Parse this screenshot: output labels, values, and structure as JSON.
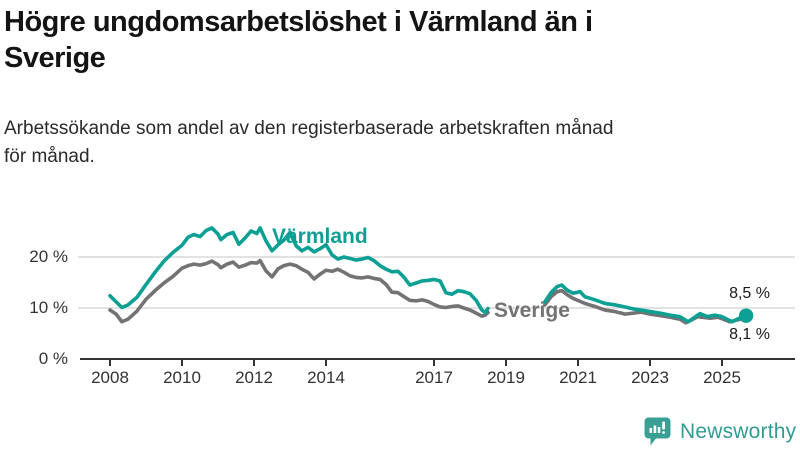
{
  "header": {
    "title": "Högre ungdomsarbetslöshet i Värmland än i\nSverige",
    "subtitle": "Arbetssökande som andel av den registerbaserade arbetskraften månad\nför månad."
  },
  "logo": {
    "text": "Newsworthy",
    "color": "#2f9c92",
    "icon": "newsworthy-speech-bubble-bar-chart-icon"
  },
  "colors": {
    "varmland_teal": "#0c9f94",
    "sverige_gray": "#737376",
    "axis": "#333333",
    "gridline": "#d9d9d9",
    "title_text": "#141414"
  },
  "chart_data": {
    "type": "line",
    "title": "Högre ungdomsarbetslöshet i Värmland än i Sverige",
    "subtitle": "Arbetssökande som andel av den registerbaserade arbetskraften månad för månad.",
    "unit": "%",
    "grid": true,
    "legend_position": "inline-labels",
    "x_range": [
      2008,
      2026
    ],
    "ylim": [
      0,
      28
    ],
    "y_ticks": [
      {
        "value": 0,
        "label": "0 %"
      },
      {
        "value": 10,
        "label": "10 %"
      },
      {
        "value": 20,
        "label": "20 %"
      }
    ],
    "x_ticks": [
      {
        "label": "2008",
        "year": 2008
      },
      {
        "label": "2010",
        "year": 2010
      },
      {
        "label": "2012",
        "year": 2012
      },
      {
        "label": "2014",
        "year": 2014
      },
      {
        "label": "2017",
        "year": 2017
      },
      {
        "label": "2019",
        "year": 2019
      },
      {
        "label": "2021",
        "year": 2021
      },
      {
        "label": "2023",
        "year": 2023
      },
      {
        "label": "2025",
        "year": 2025
      }
    ],
    "series": [
      {
        "name": "Värmland",
        "color": "#0c9f94",
        "end_label": "8,5 %",
        "end_value": 8.5,
        "segments": [
          [
            [
              2008.0,
              12.4
            ],
            [
              2008.17,
              11.2
            ],
            [
              2008.33,
              10.1
            ],
            [
              2008.5,
              10.6
            ],
            [
              2008.75,
              12.1
            ],
            [
              2009.0,
              14.6
            ],
            [
              2009.25,
              17.0
            ],
            [
              2009.5,
              19.2
            ],
            [
              2009.75,
              20.9
            ],
            [
              2010.0,
              22.3
            ],
            [
              2010.17,
              23.9
            ],
            [
              2010.33,
              24.4
            ],
            [
              2010.5,
              24.0
            ],
            [
              2010.67,
              25.2
            ],
            [
              2010.83,
              25.7
            ],
            [
              2011.0,
              24.5
            ],
            [
              2011.08,
              23.4
            ],
            [
              2011.25,
              24.4
            ],
            [
              2011.42,
              24.8
            ],
            [
              2011.58,
              22.5
            ],
            [
              2011.75,
              23.7
            ],
            [
              2011.92,
              25.1
            ],
            [
              2012.08,
              24.6
            ],
            [
              2012.17,
              25.7
            ],
            [
              2012.33,
              23.2
            ],
            [
              2012.5,
              21.2
            ],
            [
              2012.67,
              22.4
            ],
            [
              2012.83,
              23.3
            ],
            [
              2013.0,
              24.8
            ],
            [
              2013.17,
              22.2
            ],
            [
              2013.33,
              21.2
            ],
            [
              2013.5,
              21.9
            ],
            [
              2013.67,
              21.0
            ],
            [
              2013.83,
              21.6
            ],
            [
              2014.0,
              22.4
            ],
            [
              2014.17,
              20.4
            ],
            [
              2014.33,
              19.6
            ],
            [
              2014.5,
              20.0
            ],
            [
              2014.67,
              19.7
            ],
            [
              2014.83,
              19.4
            ],
            [
              2015.0,
              19.6
            ],
            [
              2015.17,
              19.9
            ],
            [
              2015.33,
              19.3
            ],
            [
              2015.5,
              18.3
            ],
            [
              2015.67,
              17.6
            ],
            [
              2015.83,
              17.1
            ],
            [
              2016.0,
              17.2
            ],
            [
              2016.17,
              16.0
            ],
            [
              2016.33,
              14.5
            ],
            [
              2016.5,
              14.9
            ],
            [
              2016.67,
              15.3
            ],
            [
              2016.83,
              15.4
            ],
            [
              2017.0,
              15.6
            ],
            [
              2017.17,
              15.3
            ],
            [
              2017.33,
              13.0
            ],
            [
              2017.5,
              12.7
            ],
            [
              2017.67,
              13.4
            ],
            [
              2017.83,
              13.2
            ],
            [
              2018.0,
              12.8
            ],
            [
              2018.17,
              11.5
            ],
            [
              2018.33,
              9.6
            ],
            [
              2018.42,
              9.1
            ],
            [
              2018.5,
              9.9
            ]
          ],
          [
            [
              2020.08,
              11.2
            ],
            [
              2020.25,
              13.0
            ],
            [
              2020.42,
              14.2
            ],
            [
              2020.55,
              14.5
            ],
            [
              2020.7,
              13.5
            ],
            [
              2020.86,
              12.9
            ],
            [
              2021.06,
              13.2
            ],
            [
              2021.19,
              12.2
            ],
            [
              2021.47,
              11.6
            ],
            [
              2021.75,
              10.9
            ],
            [
              2022.03,
              10.6
            ],
            [
              2022.31,
              10.2
            ],
            [
              2022.55,
              9.8
            ],
            [
              2022.75,
              9.6
            ],
            [
              2023.0,
              9.3
            ],
            [
              2023.28,
              9.0
            ],
            [
              2023.56,
              8.6
            ],
            [
              2023.83,
              8.3
            ],
            [
              2024.06,
              7.3
            ],
            [
              2024.39,
              8.9
            ],
            [
              2024.6,
              8.3
            ],
            [
              2024.8,
              8.6
            ],
            [
              2025.0,
              8.3
            ],
            [
              2025.28,
              7.3
            ],
            [
              2025.45,
              7.9
            ],
            [
              2025.67,
              8.5
            ]
          ]
        ]
      },
      {
        "name": "Sverige",
        "color": "#737376",
        "end_label": "8,1 %",
        "end_value": 8.1,
        "segments": [
          [
            [
              2008.0,
              9.6
            ],
            [
              2008.17,
              8.8
            ],
            [
              2008.33,
              7.3
            ],
            [
              2008.5,
              7.8
            ],
            [
              2008.75,
              9.4
            ],
            [
              2009.0,
              11.7
            ],
            [
              2009.25,
              13.4
            ],
            [
              2009.5,
              14.9
            ],
            [
              2009.75,
              16.2
            ],
            [
              2010.0,
              17.8
            ],
            [
              2010.17,
              18.3
            ],
            [
              2010.33,
              18.6
            ],
            [
              2010.5,
              18.4
            ],
            [
              2010.67,
              18.7
            ],
            [
              2010.83,
              19.2
            ],
            [
              2011.0,
              18.5
            ],
            [
              2011.08,
              17.9
            ],
            [
              2011.25,
              18.6
            ],
            [
              2011.42,
              19.0
            ],
            [
              2011.58,
              18.0
            ],
            [
              2011.75,
              18.4
            ],
            [
              2011.92,
              18.9
            ],
            [
              2012.08,
              18.8
            ],
            [
              2012.17,
              19.3
            ],
            [
              2012.33,
              17.3
            ],
            [
              2012.5,
              16.1
            ],
            [
              2012.67,
              17.7
            ],
            [
              2012.83,
              18.3
            ],
            [
              2013.0,
              18.6
            ],
            [
              2013.17,
              18.3
            ],
            [
              2013.33,
              17.6
            ],
            [
              2013.5,
              17.0
            ],
            [
              2013.67,
              15.7
            ],
            [
              2013.83,
              16.6
            ],
            [
              2014.0,
              17.4
            ],
            [
              2014.17,
              17.2
            ],
            [
              2014.33,
              17.6
            ],
            [
              2014.5,
              17.0
            ],
            [
              2014.67,
              16.3
            ],
            [
              2014.83,
              16.0
            ],
            [
              2015.0,
              15.9
            ],
            [
              2015.17,
              16.1
            ],
            [
              2015.33,
              15.8
            ],
            [
              2015.5,
              15.6
            ],
            [
              2015.67,
              14.6
            ],
            [
              2015.83,
              13.1
            ],
            [
              2016.0,
              13.0
            ],
            [
              2016.17,
              12.2
            ],
            [
              2016.33,
              11.5
            ],
            [
              2016.5,
              11.4
            ],
            [
              2016.67,
              11.6
            ],
            [
              2016.83,
              11.3
            ],
            [
              2017.0,
              10.7
            ],
            [
              2017.17,
              10.2
            ],
            [
              2017.33,
              10.1
            ],
            [
              2017.5,
              10.3
            ],
            [
              2017.67,
              10.4
            ],
            [
              2017.83,
              10.0
            ],
            [
              2018.0,
              9.6
            ],
            [
              2018.17,
              9.0
            ],
            [
              2018.33,
              8.4
            ],
            [
              2018.42,
              8.6
            ],
            [
              2018.5,
              9.1
            ]
          ],
          [
            [
              2020.08,
              10.6
            ],
            [
              2020.25,
              12.2
            ],
            [
              2020.42,
              13.2
            ],
            [
              2020.55,
              13.4
            ],
            [
              2020.7,
              12.6
            ],
            [
              2020.86,
              11.9
            ],
            [
              2021.06,
              11.3
            ],
            [
              2021.19,
              10.9
            ],
            [
              2021.47,
              10.3
            ],
            [
              2021.75,
              9.6
            ],
            [
              2022.03,
              9.3
            ],
            [
              2022.31,
              8.8
            ],
            [
              2022.55,
              9.0
            ],
            [
              2022.75,
              9.2
            ],
            [
              2023.0,
              8.8
            ],
            [
              2023.28,
              8.5
            ],
            [
              2023.56,
              8.2
            ],
            [
              2023.83,
              7.8
            ],
            [
              2024.0,
              7.1
            ],
            [
              2024.33,
              8.3
            ],
            [
              2024.67,
              8.0
            ],
            [
              2024.89,
              8.2
            ],
            [
              2025.22,
              7.3
            ],
            [
              2025.5,
              7.8
            ],
            [
              2025.67,
              8.1
            ]
          ]
        ]
      }
    ]
  }
}
